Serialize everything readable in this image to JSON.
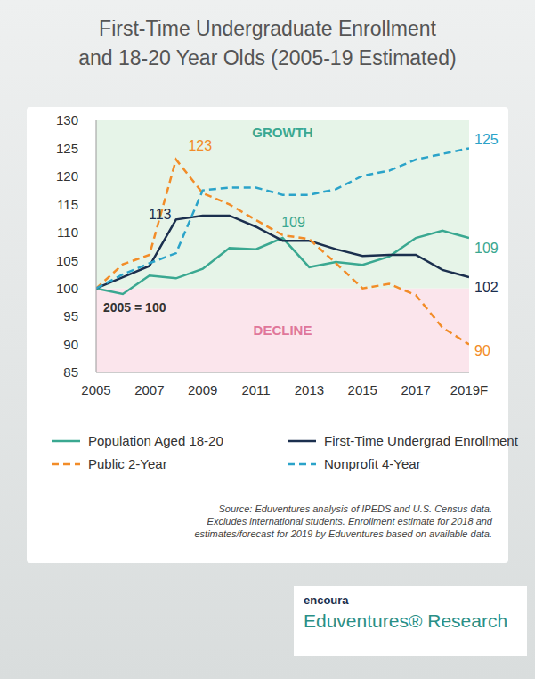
{
  "chart_data": {
    "type": "line",
    "title": "First-Time Undergraduate Enrollment\nand 18-20 Year Olds (2005-19 Estimated)",
    "x": [
      2005,
      2006,
      2007,
      2008,
      2009,
      2010,
      2011,
      2012,
      2013,
      2014,
      2015,
      2016,
      2017,
      2018,
      2019
    ],
    "xlim": [
      2005,
      2019
    ],
    "xticks": [
      2005,
      2007,
      2009,
      2011,
      2013,
      2015,
      2017,
      {
        "value": 2019,
        "label": "2019F"
      }
    ],
    "ylim": [
      85,
      130
    ],
    "yticks": [
      85,
      90,
      95,
      100,
      105,
      110,
      115,
      120,
      125,
      130
    ],
    "grid": false,
    "legend": "bottom",
    "series": [
      {
        "name": "Population Aged 18-20",
        "color": "#3aa891",
        "line_style": "solid",
        "values": [
          100,
          99,
          102.3,
          101.8,
          103.5,
          107.2,
          107,
          109,
          103.8,
          104.7,
          104.2,
          105.7,
          109,
          110.3,
          109
        ]
      },
      {
        "name": "First-Time Undergrad Enrollment",
        "color": "#1b2f4e",
        "line_style": "solid",
        "values": [
          100,
          102,
          104,
          112.3,
          113,
          113,
          111,
          108.5,
          108.5,
          107,
          105.8,
          106,
          106,
          103.3,
          102
        ]
      },
      {
        "name": "Public 2-Year",
        "color": "#f28c28",
        "line_style": "dashed",
        "values": [
          100,
          104.3,
          106,
          123,
          117,
          115,
          112.2,
          109.5,
          108.8,
          104.5,
          100,
          100.8,
          98.8,
          93,
          90
        ]
      },
      {
        "name": "Nonprofit 4-Year",
        "color": "#2ba3c9",
        "line_style": "dashed",
        "values": [
          100,
          102.5,
          104.5,
          106.3,
          117.5,
          118,
          118,
          116.7,
          116.7,
          117.7,
          120.1,
          121,
          123,
          124,
          125
        ]
      }
    ],
    "regions": [
      {
        "label": "GROWTH",
        "from": 100,
        "to": 130,
        "color": "#e6f4e8"
      },
      {
        "label": "DECLINE",
        "from": 85,
        "to": 100,
        "color": "#fbe5ec"
      }
    ],
    "baseline_note": "2005 = 100",
    "annotations": [
      {
        "text": "123",
        "x": 2008,
        "y": 123,
        "series": "Public 2-Year"
      },
      {
        "text": "113",
        "x": 2009,
        "y": 113,
        "series": "First-Time Undergrad Enrollment"
      },
      {
        "text": "109",
        "x": 2012,
        "y": 109,
        "series": "Population Aged 18-20"
      },
      {
        "text": "125",
        "x": 2019,
        "y": 125,
        "series": "Nonprofit 4-Year"
      },
      {
        "text": "109",
        "x": 2019,
        "y": 109,
        "series": "Population Aged 18-20"
      },
      {
        "text": "102",
        "x": 2019,
        "y": 102,
        "series": "First-Time Undergrad Enrollment"
      },
      {
        "text": "90",
        "x": 2019,
        "y": 90,
        "series": "Public 2-Year"
      }
    ],
    "source_note": "Source: Eduventures analysis of IPEDS and U.S. Census data.\nExcludes international students. Enrollment estimate for 2018 and\nestimates/forecast for 2019 by Eduventures based on available data."
  },
  "logo": {
    "brand": "encoura",
    "name": "Eduventures® Research"
  }
}
